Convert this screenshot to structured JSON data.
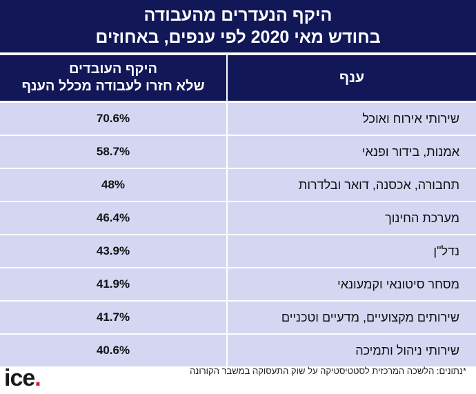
{
  "title": {
    "line1": "היקף הנעדרים מהעבודה",
    "line2": "בחודש מאי 2020 לפי ענפים, באחוזים"
  },
  "table_header": {
    "sector_label": "ענף",
    "value_line1": "היקף העובדים",
    "value_line2": "שלא חזרו לעבודה מכלל הענף"
  },
  "chart_data": {
    "type": "table",
    "title": "היקף הנעדרים מהעבודה בחודש מאי 2020 לפי ענפים, באחוזים",
    "columns": [
      "ענף",
      "היקף העובדים שלא חזרו לעבודה מכלל הענף"
    ],
    "rows": [
      {
        "sector": "שירותי אירוח ואוכל",
        "value": "70.6%"
      },
      {
        "sector": "אמנות, בידור ופנאי",
        "value": "58.7%"
      },
      {
        "sector": "תחבורה, אכסנה, דואר ובלדרות",
        "value": "48%"
      },
      {
        "sector": "מערכת החינוך",
        "value": "46.4%"
      },
      {
        "sector": "נדל\"ן",
        "value": "43.9%"
      },
      {
        "sector": "מסחר סיטונאי וקמעונאי",
        "value": "41.9%"
      },
      {
        "sector": "שירותים מקצועיים, מדעיים וטכניים",
        "value": "41.7%"
      },
      {
        "sector": "שירותי ניהול ותמיכה",
        "value": "40.6%"
      }
    ]
  },
  "logo": {
    "text": "ice",
    "dot": "."
  },
  "footnote": "*נתונים: הלשכה המרכזית לסטטיסטיקה על שוק התעסוקה במשבר הקורונה",
  "colors": {
    "header_bg": "#121758",
    "row_bg": "#d4d6f2",
    "logo_dot": "#e01b24"
  }
}
